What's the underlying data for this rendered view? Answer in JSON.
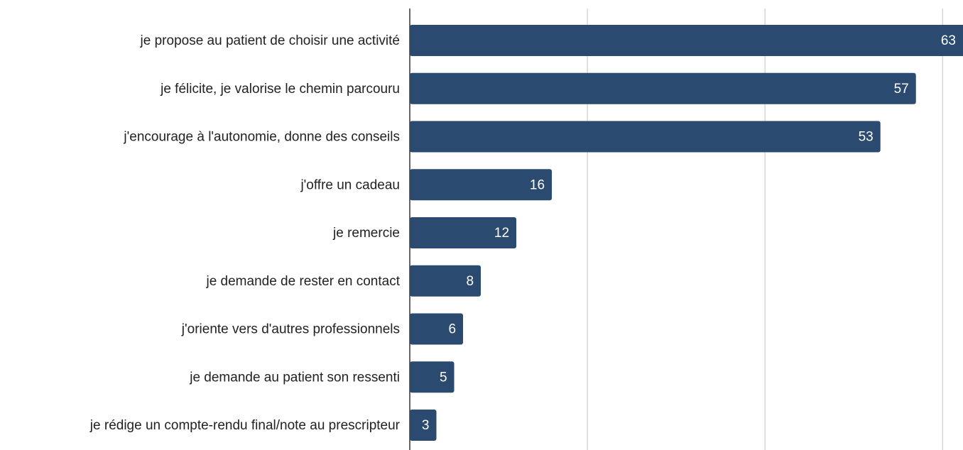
{
  "chart_data": {
    "type": "barh",
    "categories": [
      "je propose au patient de choisir une activité",
      "je félicite, je valorise le chemin parcouru",
      "j'encourage à l'autonomie, donne des conseils",
      "j'offre un cadeau",
      "je remercie",
      "je demande de rester en contact",
      "j'oriente vers d'autres professionnels",
      "je demande au patient son ressenti",
      "je rédige un compte-rendu final/note au prescripteur"
    ],
    "values": [
      63,
      57,
      53,
      16,
      12,
      8,
      6,
      5,
      3
    ],
    "color": "#2b4a6f",
    "xlim": [
      0,
      62.3
    ],
    "xticks": [
      0,
      20,
      40,
      60
    ],
    "grid": true
  }
}
